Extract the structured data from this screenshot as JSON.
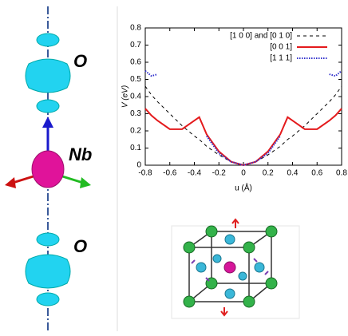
{
  "left_panel": {
    "labels": [
      "O",
      "Nb",
      "O"
    ]
  },
  "chart_data": {
    "type": "line",
    "xlabel": "u (Å)",
    "ylabel": "V (eV)",
    "x": [
      -0.8,
      -0.75,
      -0.7,
      -0.6,
      -0.5,
      -0.4,
      -0.36,
      -0.3,
      -0.2,
      -0.1,
      0,
      0.1,
      0.2,
      0.3,
      0.36,
      0.4,
      0.5,
      0.6,
      0.7,
      0.75,
      0.8
    ],
    "series": [
      {
        "name": "[1 0 0] and [0 1 0]",
        "color": "#000000",
        "style": "dashed",
        "values": [
          0.46,
          0.41,
          0.37,
          0.3,
          0.23,
          0.17,
          0.15,
          0.11,
          0.06,
          0.02,
          0,
          0.02,
          0.06,
          0.11,
          0.15,
          0.17,
          0.23,
          0.3,
          0.37,
          0.41,
          0.46
        ]
      },
      {
        "name": "[0 0 1]",
        "color": "#e41a1c",
        "style": "solid",
        "values": [
          0.33,
          0.29,
          0.26,
          0.21,
          0.21,
          0.26,
          0.28,
          0.18,
          0.08,
          0.02,
          0,
          0.02,
          0.08,
          0.18,
          0.28,
          0.26,
          0.21,
          0.21,
          0.26,
          0.29,
          0.33
        ]
      },
      {
        "name": "[1 1 1]",
        "color": "#3333cc",
        "style": "dotted",
        "values": [
          0.55,
          0.52,
          0.53,
          null,
          null,
          null,
          null,
          0.17,
          0.07,
          0.02,
          0,
          0.02,
          0.07,
          0.17,
          null,
          null,
          null,
          null,
          0.53,
          0.52,
          0.55
        ]
      }
    ],
    "xlim": [
      -0.8,
      0.8
    ],
    "xticks": [
      -0.8,
      -0.6,
      -0.4,
      -0.2,
      0,
      0.2,
      0.4,
      0.6,
      0.8
    ],
    "ylim": [
      0,
      0.8
    ],
    "yticks": [
      0,
      0.1,
      0.2,
      0.3,
      0.4,
      0.5,
      0.6,
      0.7,
      0.8
    ],
    "grid": false,
    "legend": "top-right"
  }
}
